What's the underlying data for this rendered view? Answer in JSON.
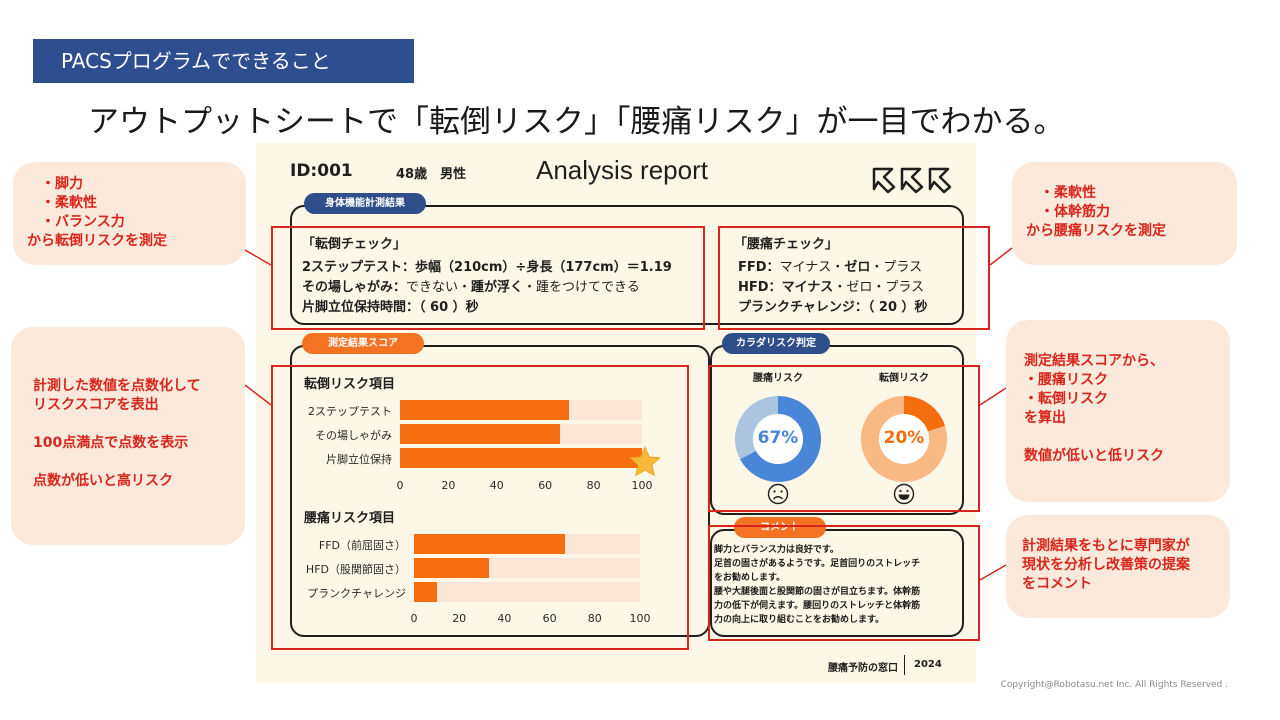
{
  "tag": "PACSプログラムでできること",
  "headline": "アウトプットシートで「転倒リスク」「腰痛リスク」が一目でわかる。",
  "report": {
    "id": "ID:001",
    "age_sex": "48歳　男性",
    "title": "Analysis report",
    "logo_icon": "kkk-arrow-logo",
    "section_measure": "身体機能計測結果",
    "fall_check": {
      "title": "「転倒チェック」",
      "line1_label": "2ステップテスト：",
      "line1_text": "歩幅（210cm）÷身長（177cm）＝1.19",
      "line2_label": "その場しゃがみ：",
      "line2_a": "できない・",
      "line2_b": "踵が浮く",
      "line2_c": "・踵をつけてできる",
      "line3": "片脚立位保持時間：（ 60 ）秒"
    },
    "back_check": {
      "title": "「腰痛チェック」",
      "ffd_label": "FFD：",
      "ffd_a": "マイナス・",
      "ffd_b": "ゼロ",
      "ffd_c": "・プラス",
      "hfd_label": "HFD：",
      "hfd_a": "マイナス",
      "hfd_b": "・ゼロ・プラス",
      "plank": "プランクチャレンジ：（ 20 ）秒"
    },
    "section_score": "測定結果スコア",
    "fall_items_title": "転倒リスク項目",
    "back_items_title": "腰痛リスク項目",
    "section_risk": "カラダリスク判定",
    "section_comment": "コメント",
    "footer_left": "腰痛予防の窓口",
    "footer_right": "2024"
  },
  "chart_data": [
    {
      "type": "bar",
      "title": "転倒リスク項目",
      "categories": [
        "2ステップテスト",
        "その場しゃがみ",
        "片脚立位保持"
      ],
      "values": [
        70,
        66,
        100
      ],
      "xlim": [
        0,
        100
      ],
      "ticks": [
        "0",
        "20",
        "40",
        "60",
        "80",
        "100"
      ],
      "highlight": "star-icon"
    },
    {
      "type": "bar",
      "title": "腰痛リスク項目",
      "categories": [
        "FFD（前屈固さ）",
        "HFD（股関節固さ）",
        "プランクチャレンジ"
      ],
      "values": [
        67,
        33,
        10
      ],
      "xlim": [
        0,
        100
      ],
      "ticks": [
        "0",
        "20",
        "40",
        "60",
        "80",
        "100"
      ]
    },
    {
      "type": "pie",
      "title": "腰痛リスク",
      "value": 67,
      "label": "67%",
      "color": "#4a86d8",
      "face": "sad-face-icon"
    },
    {
      "type": "pie",
      "title": "転倒リスク",
      "value": 20,
      "label": "20%",
      "color": "#f46d0e",
      "face": "grin-face-icon"
    }
  ],
  "comment_lines": [
    "脚力とバランス力は良好です。",
    "足首の固さがあるようです。足首回りのストレッチ",
    "をお勧めします。",
    "腰や大腿後面と股関節の固さが目立ちます。体幹筋",
    "力の低下が伺えます。腰回りのストレッチと体幹筋",
    "力の向上に取り組むことをお勧めします。"
  ],
  "notes": {
    "fall": [
      "・脚力",
      "・柔軟性",
      "・バランス力",
      "から転倒リスクを測定"
    ],
    "back": [
      "・柔軟性",
      "・体幹筋力",
      "から腰痛リスクを測定"
    ],
    "score": [
      "計測した数値を点数化して",
      "リスクスコアを表出",
      "",
      "100点満点で点数を表示",
      "",
      "点数が低いと高リスク"
    ],
    "risk": [
      "測定結果スコアから、",
      "・腰痛リスク",
      "・転倒リスク",
      "を算出",
      "",
      "数値が低いと低リスク"
    ],
    "comment": [
      "計測結果をもとに専門家が",
      "現状を分析し改善策の提案",
      "をコメント"
    ]
  },
  "colors": {
    "accent": "#f46d0e",
    "navy": "#2e4f8f",
    "red": "#d8251c",
    "blue": "#4a86d8"
  },
  "copyright": "Copyright@Robotasu.net Inc. All Rights Reserved ."
}
